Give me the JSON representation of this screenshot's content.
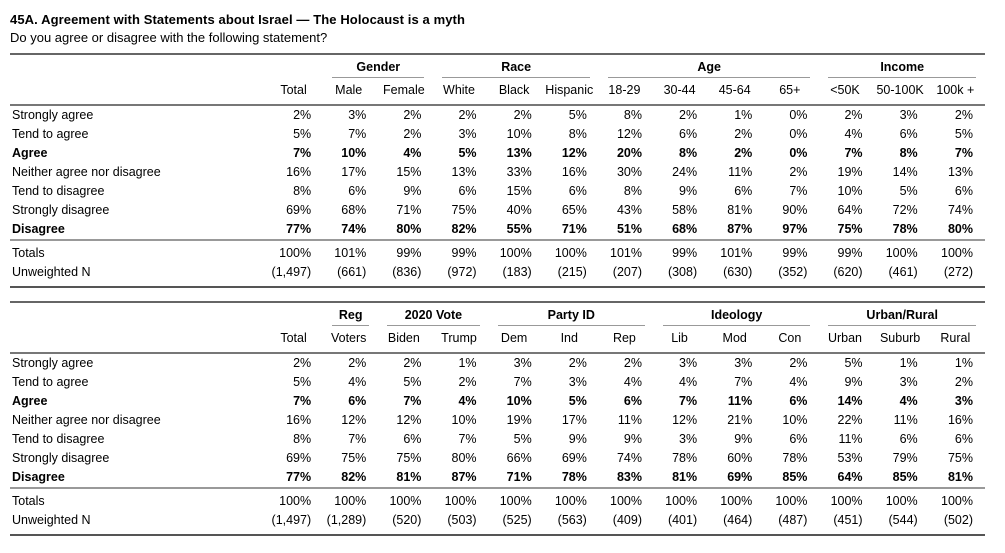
{
  "page": {
    "title": "45A. Agreement with Statements about Israel — The Holocaust is a myth",
    "subtitle": "Do you agree or disagree with the following statement?"
  },
  "colors": {
    "rule_dark": "#555555",
    "rule_gray": "#999999",
    "text": "#000000",
    "background": "#ffffff"
  },
  "tables": [
    {
      "name": "demographics",
      "groups": [
        {
          "label": "Gender",
          "span": 2
        },
        {
          "label": "Race",
          "span": 3
        },
        {
          "label": "Age",
          "span": 4
        },
        {
          "label": "Income",
          "span": 3
        }
      ],
      "columns": [
        "Total",
        "Male",
        "Female",
        "White",
        "Black",
        "Hispanic",
        "18-29",
        "30-44",
        "45-64",
        "65+",
        "<50K",
        "50-100K",
        "100k +"
      ],
      "rows": [
        {
          "label": "Strongly agree",
          "bold": false,
          "values": [
            "2%",
            "3%",
            "2%",
            "2%",
            "2%",
            "5%",
            "8%",
            "2%",
            "1%",
            "0%",
            "2%",
            "3%",
            "2%"
          ]
        },
        {
          "label": "Tend to agree",
          "bold": false,
          "values": [
            "5%",
            "7%",
            "2%",
            "3%",
            "10%",
            "8%",
            "12%",
            "6%",
            "2%",
            "0%",
            "4%",
            "6%",
            "5%"
          ]
        },
        {
          "label": "Agree",
          "bold": true,
          "values": [
            "7%",
            "10%",
            "4%",
            "5%",
            "13%",
            "12%",
            "20%",
            "8%",
            "2%",
            "0%",
            "7%",
            "8%",
            "7%"
          ]
        },
        {
          "label": "Neither agree nor disagree",
          "bold": false,
          "values": [
            "16%",
            "17%",
            "15%",
            "13%",
            "33%",
            "16%",
            "30%",
            "24%",
            "11%",
            "2%",
            "19%",
            "14%",
            "13%"
          ]
        },
        {
          "label": "Tend to disagree",
          "bold": false,
          "values": [
            "8%",
            "6%",
            "9%",
            "6%",
            "15%",
            "6%",
            "8%",
            "9%",
            "6%",
            "7%",
            "10%",
            "5%",
            "6%"
          ]
        },
        {
          "label": "Strongly disagree",
          "bold": false,
          "values": [
            "69%",
            "68%",
            "71%",
            "75%",
            "40%",
            "65%",
            "43%",
            "58%",
            "81%",
            "90%",
            "64%",
            "72%",
            "74%"
          ]
        },
        {
          "label": "Disagree",
          "bold": true,
          "values": [
            "77%",
            "74%",
            "80%",
            "82%",
            "55%",
            "71%",
            "51%",
            "68%",
            "87%",
            "97%",
            "75%",
            "78%",
            "80%"
          ]
        }
      ],
      "summary_rows": [
        {
          "label": "Totals",
          "values": [
            "100%",
            "101%",
            "99%",
            "99%",
            "100%",
            "100%",
            "101%",
            "99%",
            "101%",
            "99%",
            "99%",
            "100%",
            "100%"
          ]
        },
        {
          "label": "Unweighted N",
          "values": [
            "(1,497)",
            "(661)",
            "(836)",
            "(972)",
            "(183)",
            "(215)",
            "(207)",
            "(308)",
            "(630)",
            "(352)",
            "(620)",
            "(461)",
            "(272)"
          ]
        }
      ]
    },
    {
      "name": "politics",
      "groups": [
        {
          "label": "Reg",
          "span": 1
        },
        {
          "label": "2020 Vote",
          "span": 2
        },
        {
          "label": "Party ID",
          "span": 3
        },
        {
          "label": "Ideology",
          "span": 3
        },
        {
          "label": "Urban/Rural",
          "span": 3
        }
      ],
      "columns": [
        "Total",
        "Voters",
        "Biden",
        "Trump",
        "Dem",
        "Ind",
        "Rep",
        "Lib",
        "Mod",
        "Con",
        "Urban",
        "Suburb",
        "Rural"
      ],
      "rows": [
        {
          "label": "Strongly agree",
          "bold": false,
          "values": [
            "2%",
            "2%",
            "2%",
            "1%",
            "3%",
            "2%",
            "2%",
            "3%",
            "3%",
            "2%",
            "5%",
            "1%",
            "1%"
          ]
        },
        {
          "label": "Tend to agree",
          "bold": false,
          "values": [
            "5%",
            "4%",
            "5%",
            "2%",
            "7%",
            "3%",
            "4%",
            "4%",
            "7%",
            "4%",
            "9%",
            "3%",
            "2%"
          ]
        },
        {
          "label": "Agree",
          "bold": true,
          "values": [
            "7%",
            "6%",
            "7%",
            "4%",
            "10%",
            "5%",
            "6%",
            "7%",
            "11%",
            "6%",
            "14%",
            "4%",
            "3%"
          ]
        },
        {
          "label": "Neither agree nor disagree",
          "bold": false,
          "values": [
            "16%",
            "12%",
            "12%",
            "10%",
            "19%",
            "17%",
            "11%",
            "12%",
            "21%",
            "10%",
            "22%",
            "11%",
            "16%"
          ]
        },
        {
          "label": "Tend to disagree",
          "bold": false,
          "values": [
            "8%",
            "7%",
            "6%",
            "7%",
            "5%",
            "9%",
            "9%",
            "3%",
            "9%",
            "6%",
            "11%",
            "6%",
            "6%"
          ]
        },
        {
          "label": "Strongly disagree",
          "bold": false,
          "values": [
            "69%",
            "75%",
            "75%",
            "80%",
            "66%",
            "69%",
            "74%",
            "78%",
            "60%",
            "78%",
            "53%",
            "79%",
            "75%"
          ]
        },
        {
          "label": "Disagree",
          "bold": true,
          "values": [
            "77%",
            "82%",
            "81%",
            "87%",
            "71%",
            "78%",
            "83%",
            "81%",
            "69%",
            "85%",
            "64%",
            "85%",
            "81%"
          ]
        }
      ],
      "summary_rows": [
        {
          "label": "Totals",
          "values": [
            "100%",
            "100%",
            "100%",
            "100%",
            "100%",
            "100%",
            "100%",
            "100%",
            "100%",
            "100%",
            "100%",
            "100%",
            "100%"
          ]
        },
        {
          "label": "Unweighted N",
          "values": [
            "(1,497)",
            "(1,289)",
            "(520)",
            "(503)",
            "(525)",
            "(563)",
            "(409)",
            "(401)",
            "(464)",
            "(487)",
            "(451)",
            "(544)",
            "(502)"
          ]
        }
      ]
    }
  ]
}
